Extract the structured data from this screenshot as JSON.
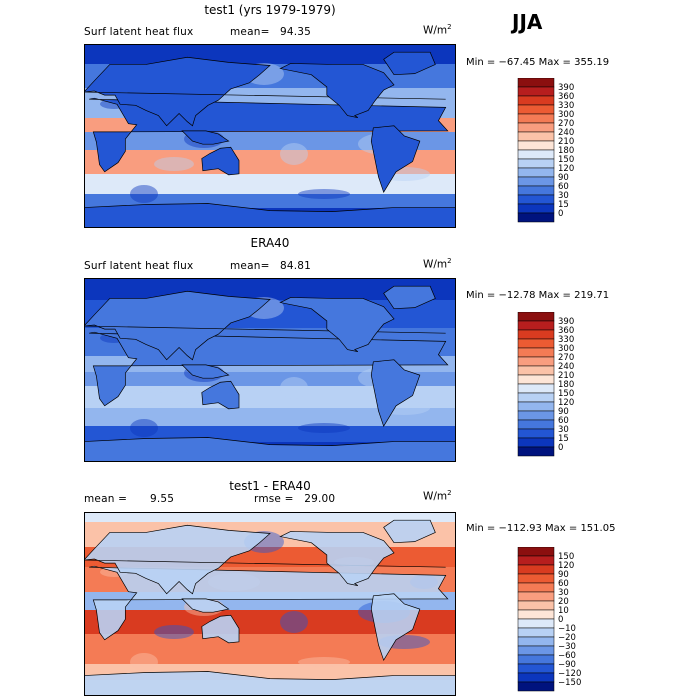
{
  "season": "JJA",
  "panels": [
    {
      "id": "model",
      "title": "test1 (yrs 1979-1979)",
      "left_label": "Surf latent heat flux",
      "stat_label": "mean=",
      "stat_value": "94.35",
      "extra": "",
      "units_base": "W/m",
      "units_sup": "2",
      "minmax": "Min = −67.45 Max = 355.19",
      "colorbar_labels": [
        "390",
        "360",
        "330",
        "300",
        "270",
        "240",
        "210",
        "180",
        "150",
        "120",
        "90",
        "60",
        "30",
        "15",
        "0"
      ],
      "colorbar_colors": [
        "#8b0f0f",
        "#b71e1e",
        "#d93b20",
        "#ec5b33",
        "#f47b55",
        "#f99d7f",
        "#fbc2a8",
        "#fde5d7",
        "#dde9f9",
        "#b8d1f4",
        "#93b6ee",
        "#6b96e6",
        "#4577dd",
        "#2356d4",
        "#0c36bd",
        "#00137e"
      ],
      "map_theme": "model"
    },
    {
      "id": "obs",
      "title": "ERA40",
      "left_label": "Surf latent heat flux",
      "stat_label": "mean=",
      "stat_value": "84.81",
      "extra": "",
      "units_base": "W/m",
      "units_sup": "2",
      "minmax": "Min = −12.78 Max = 219.71",
      "colorbar_labels": [
        "390",
        "360",
        "330",
        "300",
        "270",
        "240",
        "210",
        "180",
        "150",
        "120",
        "90",
        "60",
        "30",
        "15",
        "0"
      ],
      "colorbar_colors": [
        "#8b0f0f",
        "#b71e1e",
        "#d93b20",
        "#ec5b33",
        "#f47b55",
        "#f99d7f",
        "#fbc2a8",
        "#fde5d7",
        "#dde9f9",
        "#b8d1f4",
        "#93b6ee",
        "#6b96e6",
        "#4577dd",
        "#2356d4",
        "#0c36bd",
        "#00137e"
      ],
      "map_theme": "obs"
    },
    {
      "id": "diff",
      "title": "test1 - ERA40",
      "left_label": "mean =",
      "stat_label": "",
      "stat_value": "9.55",
      "extra": "rmse =   29.00",
      "units_base": "W/m",
      "units_sup": "2",
      "minmax": "Min = −112.93 Max = 151.05",
      "colorbar_labels": [
        "150",
        "120",
        "90",
        "60",
        "30",
        "20",
        "10",
        "0",
        "−10",
        "−20",
        "−30",
        "−60",
        "−90",
        "−120",
        "−150"
      ],
      "colorbar_colors": [
        "#8b0f0f",
        "#b71e1e",
        "#d93b20",
        "#ec5b33",
        "#f47b55",
        "#f99d7f",
        "#fbc2a8",
        "#fde5d7",
        "#dde9f9",
        "#b8d1f4",
        "#93b6ee",
        "#6b96e6",
        "#4577dd",
        "#2356d4",
        "#0c36bd",
        "#00137e"
      ],
      "map_theme": "diff"
    }
  ]
}
